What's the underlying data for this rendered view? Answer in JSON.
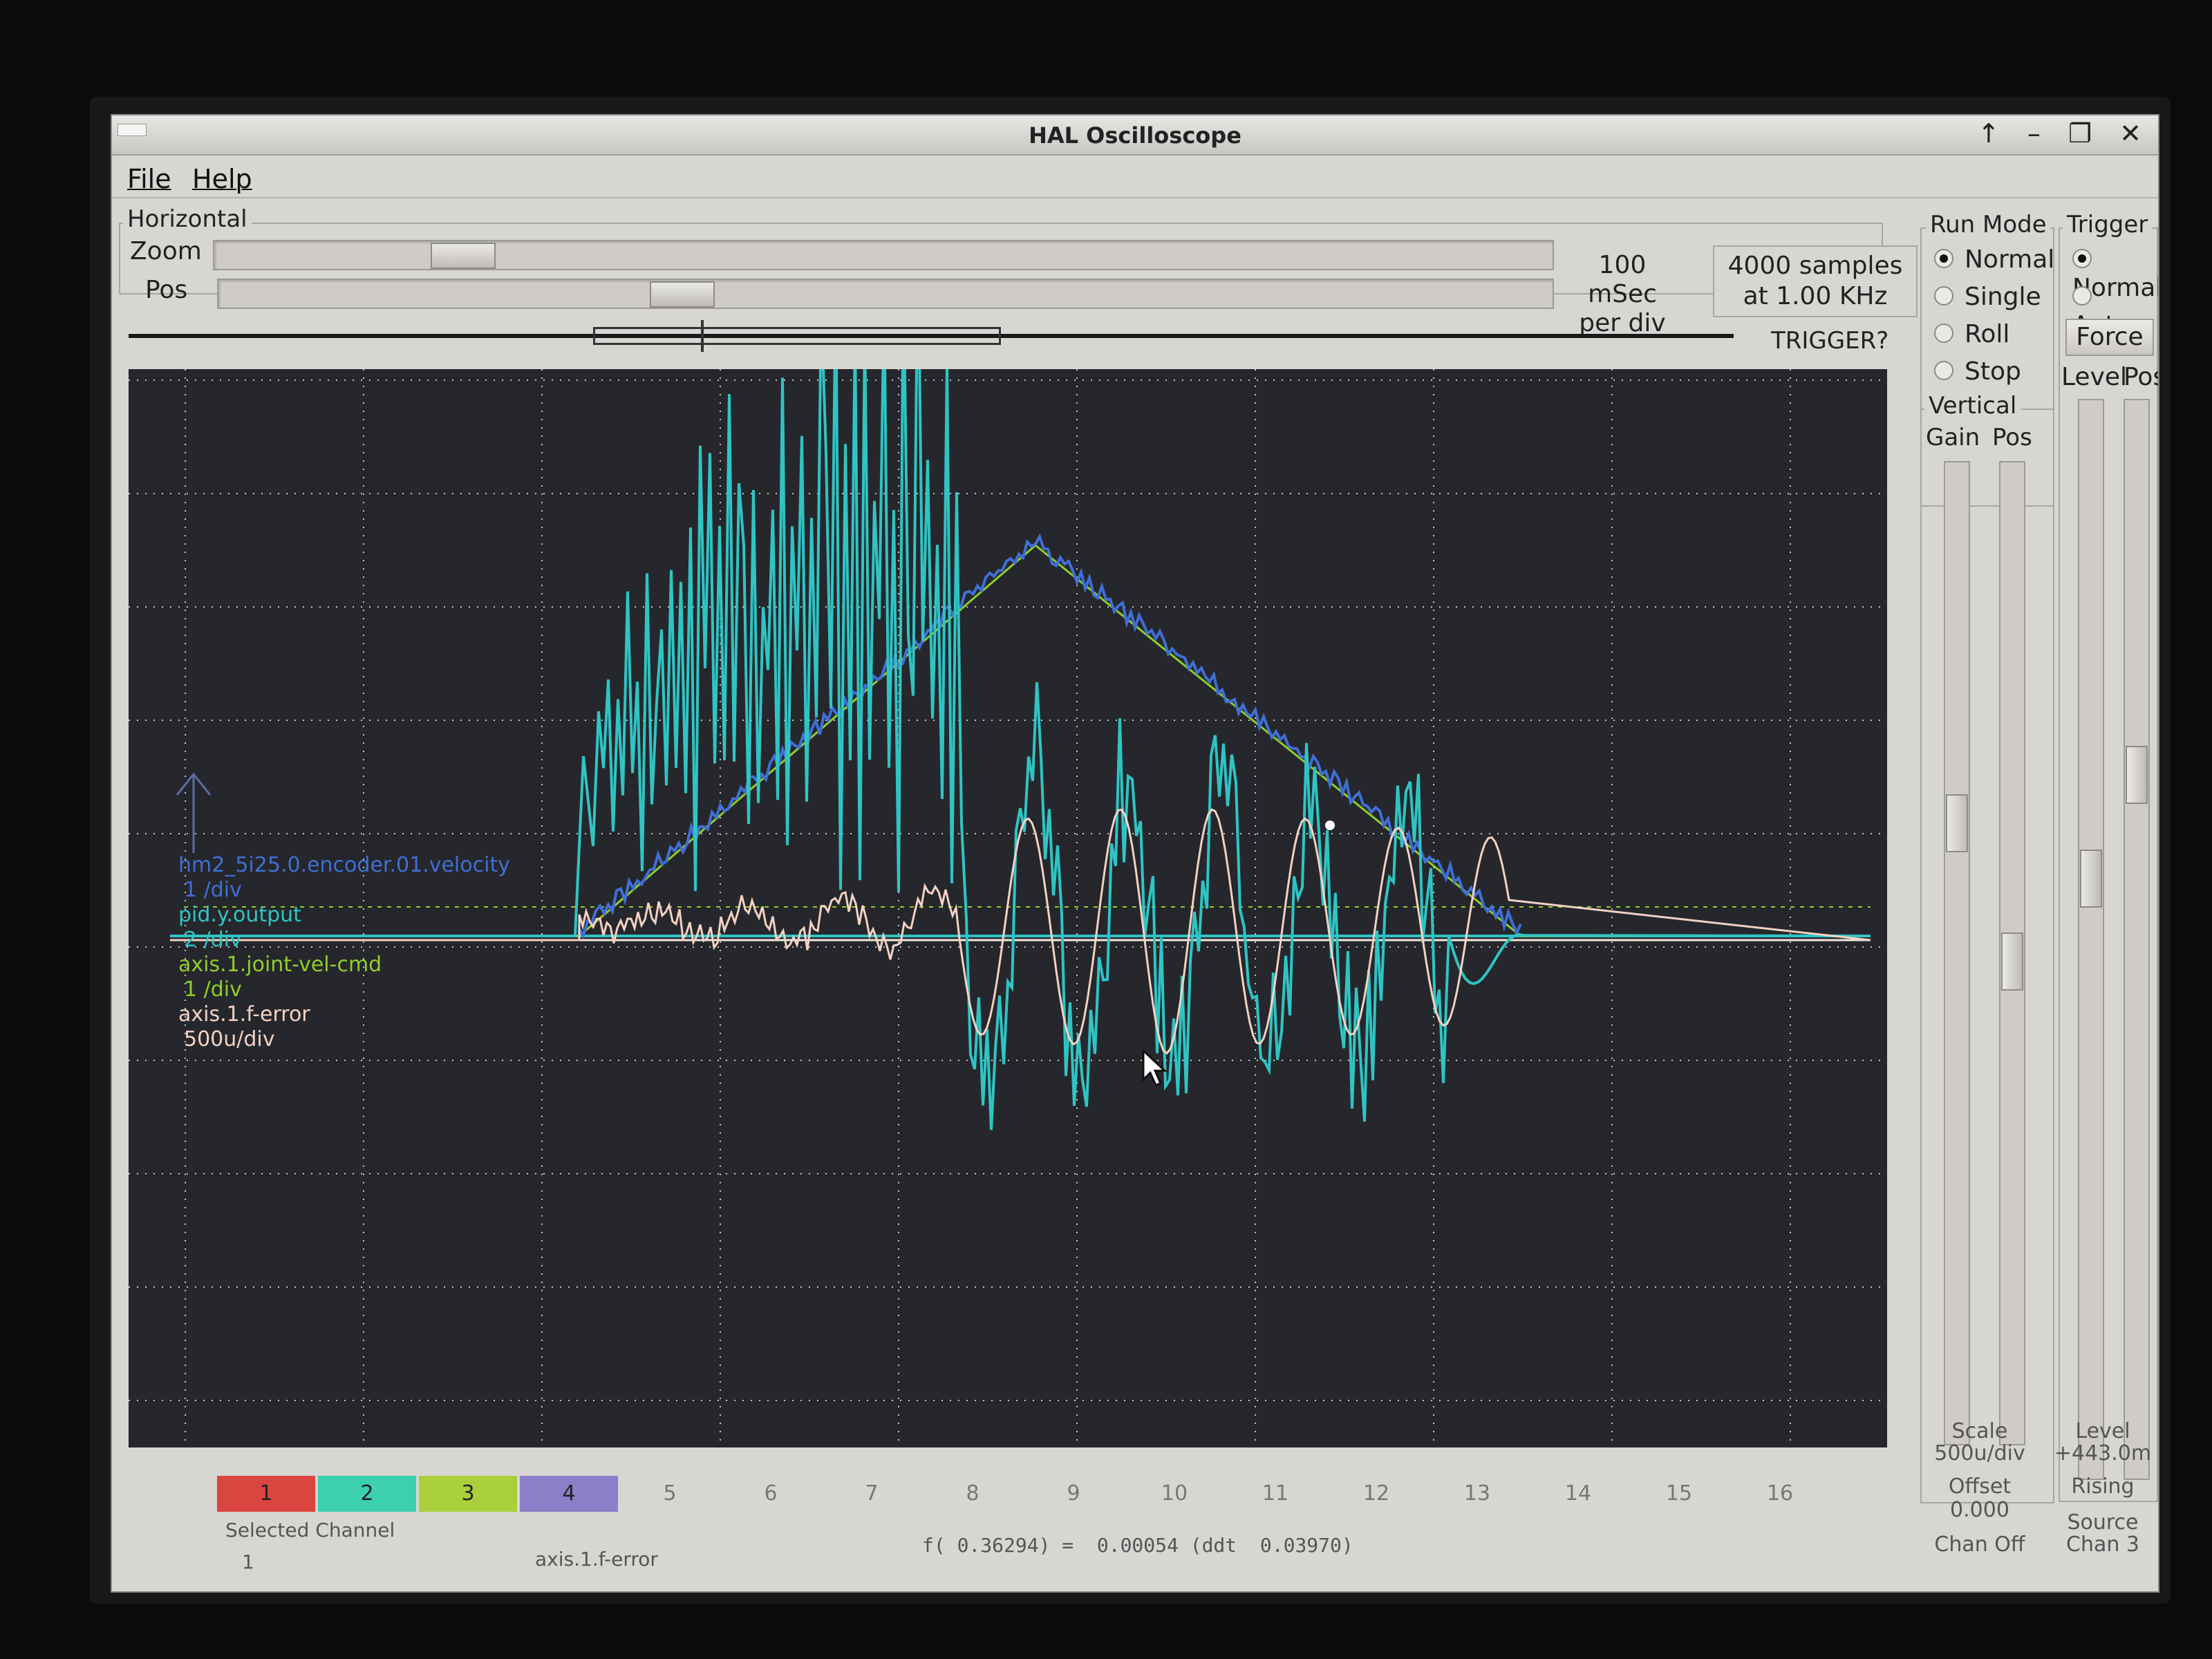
{
  "window": {
    "title": "HAL Oscilloscope",
    "controls": "↑ – ❐ ✕"
  },
  "menu": {
    "file": "File",
    "help": "Help"
  },
  "horizontal": {
    "group_label": "Horizontal",
    "zoom_label": "Zoom",
    "pos_label": "Pos",
    "zoom_value": 0.17,
    "pos_value": 0.34,
    "timebase_line1": "100 mSec",
    "timebase_line2": "per div",
    "samples_line1": "4000 samples",
    "samples_line2": "at 1.00 KHz",
    "trigger_status": "TRIGGER?"
  },
  "run_mode": {
    "label": "Run Mode",
    "options": [
      "Normal",
      "Single",
      "Roll",
      "Stop"
    ],
    "selected": "Normal"
  },
  "trigger": {
    "label": "Trigger",
    "options": [
      "Normal",
      "Auto"
    ],
    "selected": "Normal",
    "force_label": "Force",
    "level_label": "Level",
    "pos_label": "Pos"
  },
  "vertical": {
    "label": "Vertical",
    "gain_label": "Gain",
    "pos_label": "Pos"
  },
  "channel_legend": [
    {
      "name": "hm2_5i25.0.encoder.01.velocity",
      "scale": "1 /div",
      "color": "#3f6fd6"
    },
    {
      "name": "pid.y.output",
      "scale": "2 /div",
      "color": "#2fc4c4"
    },
    {
      "name": "axis.1.joint-vel-cmd",
      "scale": "1 /div",
      "color": "#8fce2a"
    },
    {
      "name": "axis.1.f-error",
      "scale": "500u/div",
      "color": "#f2d2c4"
    }
  ],
  "channels": [
    {
      "num": "1",
      "color": "#d9453f"
    },
    {
      "num": "2",
      "color": "#3ccfb0"
    },
    {
      "num": "3",
      "color": "#a9cf3a"
    },
    {
      "num": "4",
      "color": "#8a7fc8"
    },
    {
      "num": "5"
    },
    {
      "num": "6"
    },
    {
      "num": "7"
    },
    {
      "num": "8"
    },
    {
      "num": "9"
    },
    {
      "num": "10"
    },
    {
      "num": "11"
    },
    {
      "num": "12"
    },
    {
      "num": "13"
    },
    {
      "num": "14"
    },
    {
      "num": "15"
    },
    {
      "num": "16"
    }
  ],
  "status": {
    "selected_channel_label": "Selected Channel",
    "selected_channel_num": "1",
    "selected_channel_name": "axis.1.f-error",
    "readout": "f( 0.36294) =  0.00054 (ddt  0.03970)"
  },
  "channel_settings": {
    "scale_label": "Scale",
    "scale_value": "500u/div",
    "offset_label": "Offset",
    "offset_value": "0.000",
    "chan_off": "Chan Off"
  },
  "trigger_settings": {
    "level_label": "Level",
    "level_value": "+443.0m",
    "edge": "Rising",
    "source_label": "Source",
    "source_value": "Chan  3"
  }
}
